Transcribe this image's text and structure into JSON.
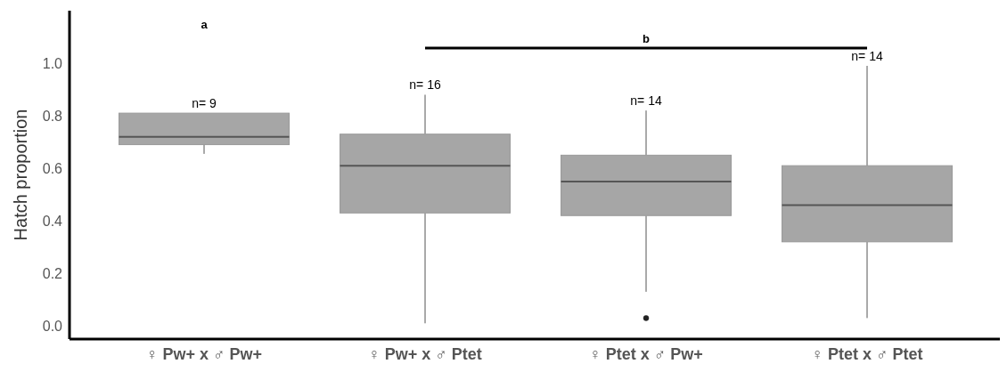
{
  "chart_data": {
    "type": "box",
    "ylabel": "Hatch proportion",
    "categories": [
      "♀ Pw+ x ♂ Pw+",
      "♀ Pw+ x ♂ Ptet",
      "♀ Ptet x ♂ Pw+",
      "♀ Ptet x ♂ Ptet"
    ],
    "boxes": [
      {
        "low": 0.655,
        "q1": 0.69,
        "median": 0.72,
        "q3": 0.81,
        "high": 0.81
      },
      {
        "low": 0.01,
        "q1": 0.43,
        "median": 0.61,
        "q3": 0.73,
        "high": 0.88
      },
      {
        "low": 0.13,
        "q1": 0.42,
        "median": 0.55,
        "q3": 0.65,
        "high": 0.82,
        "outliers": [
          0.03
        ]
      },
      {
        "low": 0.03,
        "q1": 0.32,
        "median": 0.46,
        "q3": 0.61,
        "high": 0.99
      }
    ],
    "color": "#a6a6a6",
    "ylim": [
      -0.05,
      1.2
    ],
    "yticks": [
      {
        "value": 0,
        "label": "0.0"
      },
      {
        "value": 0.2,
        "label": "0.2"
      },
      {
        "value": 0.4,
        "label": "0.4"
      },
      {
        "value": 0.6,
        "label": "0.6"
      },
      {
        "value": 0.8,
        "label": "0.8"
      },
      {
        "value": 1,
        "label": "1.0"
      }
    ],
    "annotations": [
      "n= 9",
      "n= 16",
      "n= 14",
      "n= 14",
      "a",
      "b"
    ]
  }
}
